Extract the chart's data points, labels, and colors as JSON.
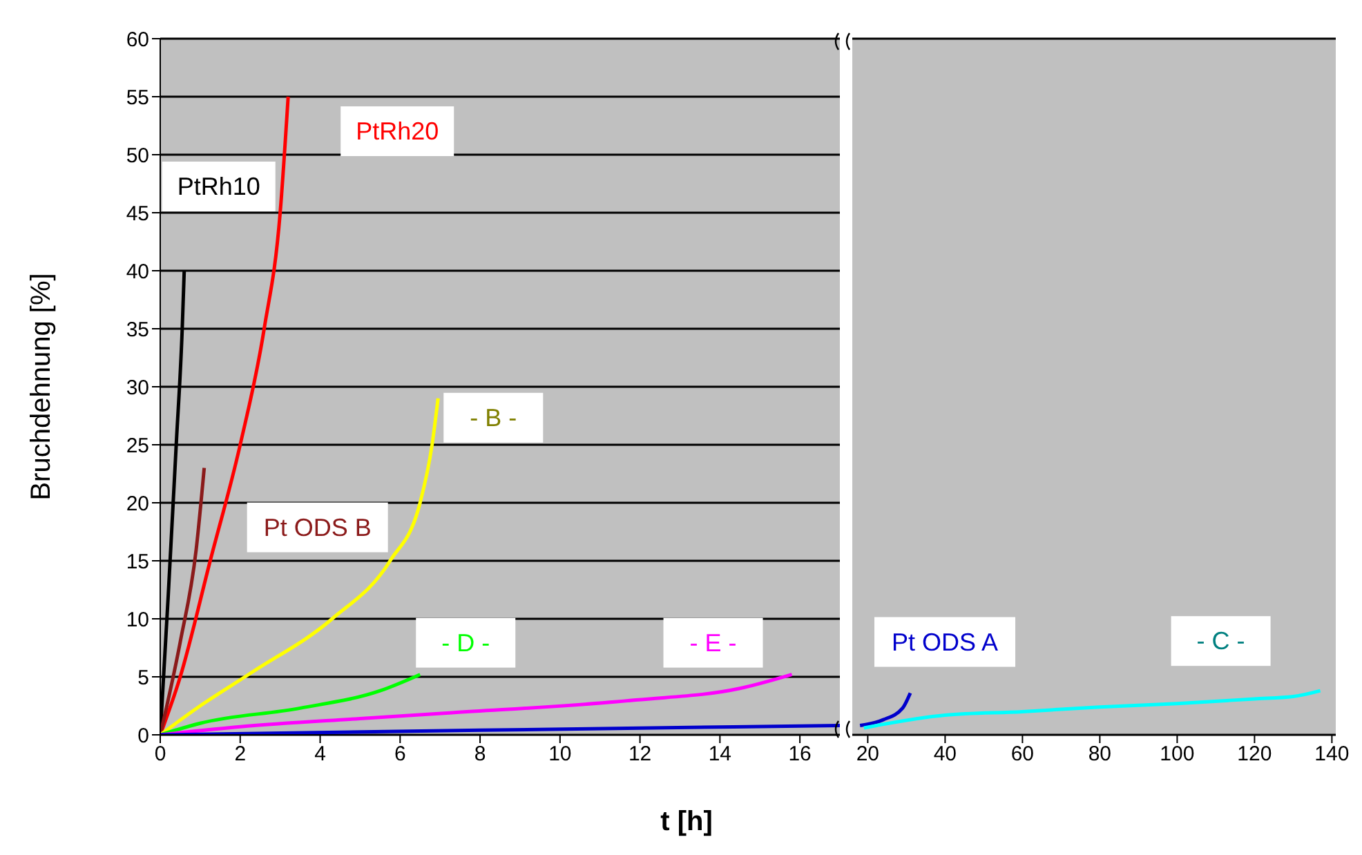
{
  "chart_data": [
    {
      "type": "line",
      "xlabel": "t [h]",
      "ylabel": "Bruchdehnung [%]",
      "xlim": [
        0,
        17
      ],
      "xticks": [
        0,
        2,
        4,
        6,
        8,
        10,
        12,
        14,
        16
      ],
      "ylim": [
        0,
        60
      ],
      "yticks": [
        0,
        5,
        10,
        15,
        20,
        25,
        30,
        35,
        40,
        45,
        50,
        55,
        60
      ],
      "grid": "y",
      "series": [
        {
          "name": "PtRh10",
          "color": "#000000",
          "x": [
            0,
            0.2,
            0.4,
            0.55,
            0.6
          ],
          "values": [
            0,
            12,
            25,
            35,
            40
          ]
        },
        {
          "name": "PtRh20",
          "color": "#ff0000",
          "x": [
            0,
            0.5,
            1.25,
            2,
            2.6,
            3,
            3.2
          ],
          "values": [
            0,
            5,
            15,
            25,
            35,
            45,
            55
          ]
        },
        {
          "name": "Pt ODS B",
          "color": "#8b1a1a",
          "x": [
            0,
            0.5,
            0.9,
            1.1
          ],
          "values": [
            0,
            8,
            16,
            23
          ]
        },
        {
          "name": "- B -",
          "color": "#ffff00",
          "x": [
            0,
            1,
            2.3,
            4.3,
            5.75,
            6.5,
            6.8,
            6.95
          ],
          "values": [
            0,
            2.5,
            5.4,
            10,
            15,
            20,
            25,
            29
          ]
        },
        {
          "name": "- D -",
          "color": "#00ff00",
          "x": [
            0,
            1,
            3.5,
            5.5,
            6.5
          ],
          "values": [
            0,
            1,
            2.3,
            3.8,
            5.2
          ]
        },
        {
          "name": "- E -",
          "color": "#ff00ff",
          "x": [
            0,
            2,
            5,
            7.3,
            11.9,
            14.5,
            15.8
          ],
          "values": [
            0,
            0.7,
            1.4,
            1.9,
            3,
            4,
            5.2
          ]
        },
        {
          "color": "#0000cc",
          "x": [
            0,
            8,
            17
          ],
          "values": [
            0,
            0.4,
            0.8
          ]
        }
      ]
    },
    {
      "type": "line",
      "tick_labels": "x",
      "xlim": [
        16,
        141
      ],
      "xticks": [
        20,
        40,
        60,
        80,
        100,
        120,
        140
      ],
      "ylim": [
        0,
        60
      ],
      "yticks": [
        0,
        5,
        10,
        15,
        20,
        25,
        30,
        35,
        40,
        45,
        50,
        55,
        60
      ],
      "grid": "y",
      "series": [
        {
          "name": "Pt ODS A",
          "color": "#0000cc",
          "x": [
            18,
            24,
            29,
            31
          ],
          "values": [
            0.8,
            1.3,
            2.3,
            3.6
          ]
        },
        {
          "name": "- C -",
          "color": "#00ffff",
          "x": [
            19,
            40,
            60,
            80,
            100,
            120,
            130,
            137
          ],
          "values": [
            0.6,
            1.7,
            2,
            2.4,
            2.7,
            3.1,
            3.3,
            3.8
          ]
        }
      ]
    }
  ]
}
